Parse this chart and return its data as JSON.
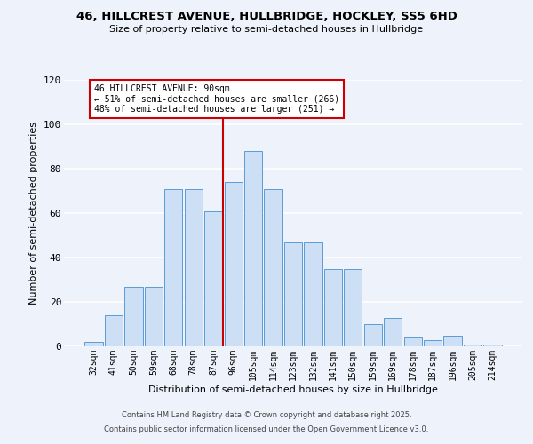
{
  "title1": "46, HILLCREST AVENUE, HULLBRIDGE, HOCKLEY, SS5 6HD",
  "title2": "Size of property relative to semi-detached houses in Hullbridge",
  "xlabel": "Distribution of semi-detached houses by size in Hullbridge",
  "ylabel": "Number of semi-detached properties",
  "annotation_title": "46 HILLCREST AVENUE: 90sqm",
  "annotation_line1": "← 51% of semi-detached houses are smaller (266)",
  "annotation_line2": "48% of semi-detached houses are larger (251) →",
  "footnote1": "Contains HM Land Registry data © Crown copyright and database right 2025.",
  "footnote2": "Contains public sector information licensed under the Open Government Licence v3.0.",
  "bar_labels": [
    "32sqm",
    "41sqm",
    "50sqm",
    "59sqm",
    "68sqm",
    "78sqm",
    "87sqm",
    "96sqm",
    "105sqm",
    "114sqm",
    "123sqm",
    "132sqm",
    "141sqm",
    "150sqm",
    "159sqm",
    "169sqm",
    "178sqm",
    "187sqm",
    "196sqm",
    "205sqm",
    "214sqm"
  ],
  "bar_values": [
    2,
    14,
    27,
    27,
    71,
    71,
    61,
    74,
    88,
    71,
    47,
    47,
    35,
    35,
    10,
    13,
    4,
    3,
    5,
    1,
    1
  ],
  "bar_color": "#ccdff5",
  "bar_edge_color": "#5b9bd5",
  "vline_color": "#cc0000",
  "vline_x": 7.5,
  "background_color": "#eef2fb",
  "grid_color": "#ffffff",
  "ylim": [
    0,
    120
  ],
  "yticks": [
    0,
    20,
    40,
    60,
    80,
    100,
    120
  ]
}
